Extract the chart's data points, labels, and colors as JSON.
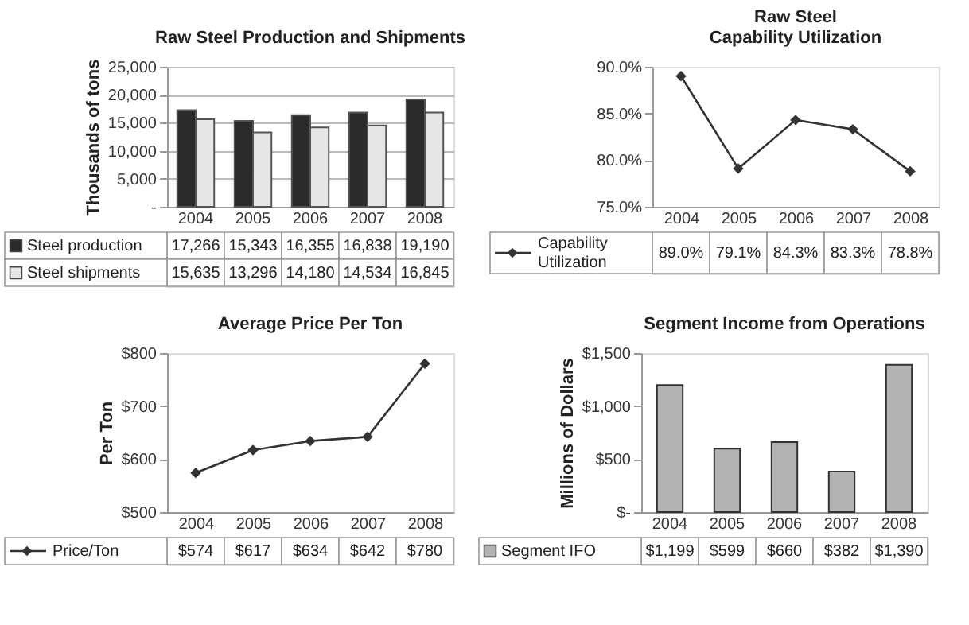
{
  "chart_data": [
    {
      "type": "bar",
      "title": "Raw Steel Production and Shipments",
      "ylabel": "Thousands of tons",
      "categories": [
        "2004",
        "2005",
        "2006",
        "2007",
        "2008"
      ],
      "series": [
        {
          "name": "Steel production",
          "color": "#2b2b2b",
          "values": [
            17266,
            15343,
            16355,
            16838,
            19190
          ],
          "value_labels": [
            "17,266",
            "15,343",
            "16,355",
            "16,838",
            "19,190"
          ]
        },
        {
          "name": "Steel shipments",
          "color": "#e6e6e6",
          "values": [
            15635,
            13296,
            14180,
            14534,
            16845
          ],
          "value_labels": [
            "15,635",
            "13,296",
            "14,180",
            "14,534",
            "16,845"
          ]
        }
      ],
      "legend": "bottom left",
      "ylim": [
        0,
        25000
      ],
      "yticks": [
        {
          "value": 0,
          "label": "-"
        },
        {
          "value": 5000,
          "label": "5,000"
        },
        {
          "value": 10000,
          "label": "10,000"
        },
        {
          "value": 15000,
          "label": "15,000"
        },
        {
          "value": 20000,
          "label": "20,000"
        },
        {
          "value": 25000,
          "label": "25,000"
        }
      ],
      "grid": "y"
    },
    {
      "type": "line",
      "title": "Raw Steel\nCapability Utilization",
      "categories": [
        "2004",
        "2005",
        "2006",
        "2007",
        "2008"
      ],
      "series": [
        {
          "name": "Capability Utilization",
          "color": "#333333",
          "values": [
            89.0,
            79.1,
            84.3,
            83.3,
            78.8
          ],
          "value_labels": [
            "89.0%",
            "79.1%",
            "84.3%",
            "83.3%",
            "78.8%"
          ]
        }
      ],
      "legend": "bottom left",
      "ylim": [
        75,
        90
      ],
      "yticks": [
        {
          "value": 75,
          "label": "75.0%"
        },
        {
          "value": 80,
          "label": "80.0%"
        },
        {
          "value": 85,
          "label": "85.0%"
        },
        {
          "value": 90,
          "label": "90.0%"
        }
      ],
      "marker": "diamond",
      "line_style": "solid"
    },
    {
      "type": "line",
      "title": "Average Price Per Ton",
      "ylabel": "Per Ton",
      "categories": [
        "2004",
        "2005",
        "2006",
        "2007",
        "2008"
      ],
      "series": [
        {
          "name": "Price/Ton",
          "color": "#333333",
          "values": [
            574,
            617,
            634,
            642,
            780
          ],
          "value_labels": [
            "$574",
            "$617",
            "$634",
            "$642",
            "$780"
          ]
        }
      ],
      "legend": "bottom left",
      "ylim": [
        500,
        800
      ],
      "yticks": [
        {
          "value": 500,
          "label": "$500"
        },
        {
          "value": 600,
          "label": "$600"
        },
        {
          "value": 700,
          "label": "$700"
        },
        {
          "value": 800,
          "label": "$800"
        }
      ],
      "marker": "diamond",
      "line_style": "solid"
    },
    {
      "type": "bar",
      "title": "Segment Income from Operations",
      "ylabel": "Millions of Dollars",
      "categories": [
        "2004",
        "2005",
        "2006",
        "2007",
        "2008"
      ],
      "series": [
        {
          "name": "Segment IFO",
          "color": "#b3b3b3",
          "values": [
            1199,
            599,
            660,
            382,
            1390
          ],
          "value_labels": [
            "$1,199",
            "$599",
            "$660",
            "$382",
            "$1,390"
          ]
        }
      ],
      "legend": "bottom left",
      "ylim": [
        0,
        1500
      ],
      "yticks": [
        {
          "value": 0,
          "label": "$-"
        },
        {
          "value": 500,
          "label": "$500"
        },
        {
          "value": 1000,
          "label": "$1,000"
        },
        {
          "value": 1500,
          "label": "$1,500"
        }
      ]
    }
  ]
}
